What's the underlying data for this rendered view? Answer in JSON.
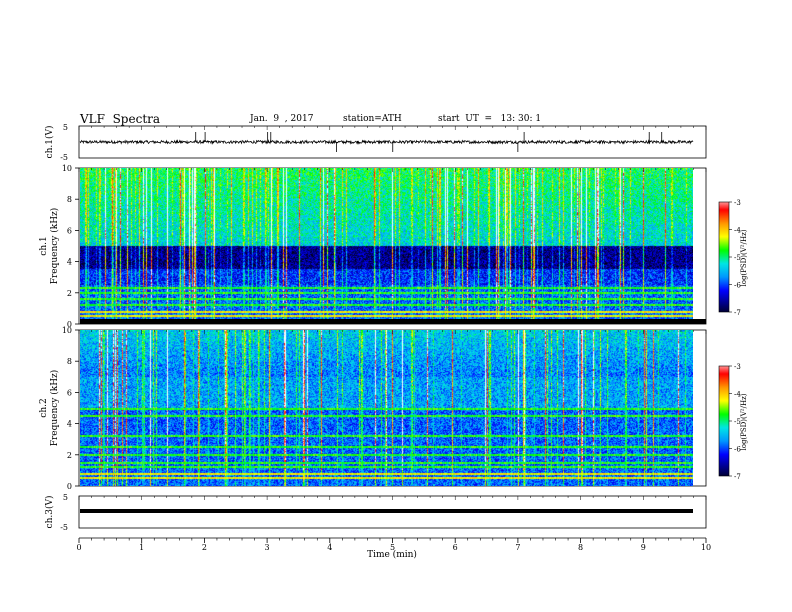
{
  "header": {
    "title": "VLF  Spectra",
    "date": "Jan.  9  , 2017",
    "station": "station=ATH",
    "start_ut": "start  UT  =   13: 30: 1"
  },
  "axes": {
    "xlabel": "Time  (min)",
    "x_ticks": [
      "0",
      "1",
      "2",
      "3",
      "4",
      "5",
      "6",
      "7",
      "8",
      "9",
      "10"
    ],
    "ch1_label": "ch.1(V)",
    "ch3_label": "ch.3(V)",
    "volt_ticks": [
      "5",
      "-5"
    ],
    "spec1_label": [
      "ch.1",
      "Frequency  (kHz)"
    ],
    "spec2_label": [
      "ch.2",
      "Frequency  (kHz)"
    ],
    "freq_ticks": [
      "0",
      "2",
      "4",
      "6",
      "8",
      "10"
    ],
    "colorbar_label": "log(PSD)(V²/Hz)",
    "colorbar_ticks": [
      "-3",
      "-4",
      "-5",
      "-6",
      "-7"
    ]
  },
  "chart_data": [
    {
      "type": "line",
      "panel": "ch.1(V)",
      "ylim": [
        -5,
        5
      ],
      "xlim": [
        0,
        10
      ],
      "description_values": "noisy waveform near 0 V with occasional spikes",
      "baseline": 0,
      "spikes_min": [
        1.85,
        2.0,
        3.0,
        3.05,
        4.1,
        5.0,
        7.0,
        7.1,
        9.1,
        9.3
      ]
    },
    {
      "type": "heatmap",
      "panel": "ch.1",
      "xlim": [
        0,
        9.8
      ],
      "ylim_khz": [
        0,
        10
      ],
      "color_scale": [
        -7,
        -3
      ],
      "quiet_band_khz": [
        3.5,
        5.0
      ],
      "active_band_khz": [
        5.0,
        10.0
      ],
      "narrowband_lines_khz": [
        0.5,
        0.8,
        1.2,
        1.6,
        2.0,
        2.3
      ]
    },
    {
      "type": "heatmap",
      "panel": "ch.2",
      "xlim": [
        0,
        9.8
      ],
      "ylim_khz": [
        0,
        10
      ],
      "color_scale": [
        -7,
        -3
      ],
      "narrowband_lines_khz": [
        0.5,
        0.8,
        1.2,
        1.5,
        2.0,
        2.5,
        3.2,
        4.5,
        5.0
      ]
    },
    {
      "type": "line",
      "panel": "ch.3(V)",
      "ylim": [
        -5,
        5
      ],
      "xlim": [
        0,
        10
      ],
      "baseline": 0
    }
  ],
  "colors": {
    "colormap": [
      "#000000",
      "#000080",
      "#0000ff",
      "#0096ff",
      "#00e6e6",
      "#00ff00",
      "#ffff00",
      "#ff9600",
      "#ff0000",
      "#ffffff"
    ]
  }
}
